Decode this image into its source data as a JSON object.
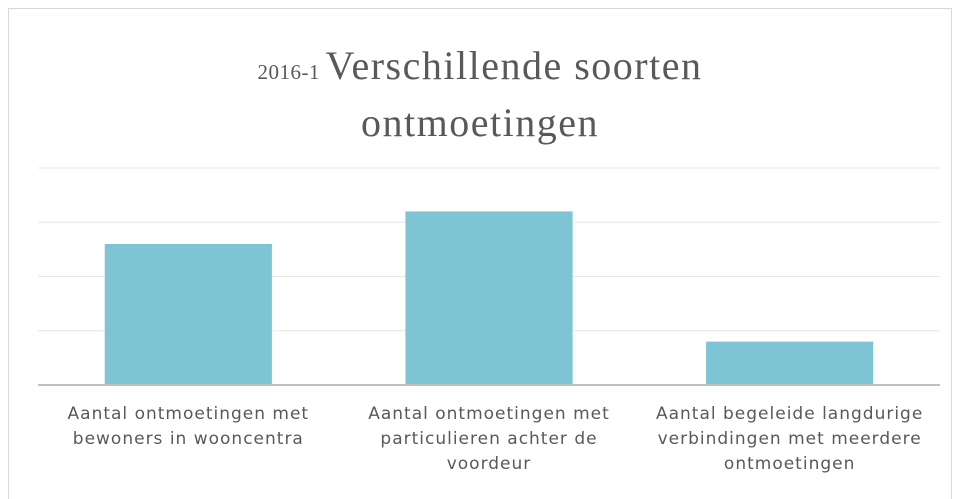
{
  "chart_data": {
    "type": "bar",
    "title_prefix": "2016-1",
    "title": "Verschillende soorten ontmoetingen",
    "categories": [
      "Aantal ontmoetingen met bewoners in wooncentra",
      "Aantal ontmoetingen met particulieren achter de voordeur",
      "Aantal begeleide langdurige verbindingen met meerdere ontmoetingen"
    ],
    "values": [
      2.6,
      3.2,
      0.8
    ],
    "color": "#7fc4d4",
    "ylim": [
      0,
      4
    ],
    "yticks": [
      0,
      1,
      2,
      3,
      4
    ],
    "grid": true
  }
}
